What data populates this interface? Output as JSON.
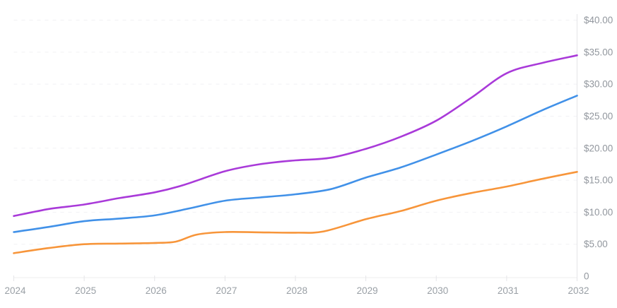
{
  "chart_data": {
    "type": "line",
    "title": "",
    "legend": "none",
    "grid": "horizontal-dashed",
    "x_axis": {
      "tick_labels": [
        "2024",
        "2025",
        "2026",
        "2027",
        "2028",
        "2029",
        "2030",
        "2031",
        "2032"
      ],
      "tick_values": [
        2024,
        2025,
        2026,
        2027,
        2028,
        2029,
        2030,
        2031,
        2032
      ],
      "range": [
        2024,
        2032
      ],
      "position": "bottom"
    },
    "y_axis": {
      "tick_labels": [
        "$40.00",
        "$35.00",
        "$30.00",
        "$25.00",
        "$20.00",
        "$15.00",
        "$10.00",
        "$5.00",
        "0"
      ],
      "tick_values": [
        40,
        35,
        30,
        25,
        20,
        15,
        10,
        5,
        0
      ],
      "range": [
        0,
        40
      ],
      "position": "right",
      "unit": "USD"
    },
    "series": [
      {
        "name": "purple-line",
        "color": "#a93ad9",
        "points": [
          [
            2024.0,
            9.4
          ],
          [
            2024.5,
            10.5
          ],
          [
            2025.0,
            11.2
          ],
          [
            2025.5,
            12.2
          ],
          [
            2026.0,
            13.1
          ],
          [
            2026.4,
            14.2
          ],
          [
            2027.0,
            16.4
          ],
          [
            2027.5,
            17.5
          ],
          [
            2028.0,
            18.1
          ],
          [
            2028.5,
            18.5
          ],
          [
            2029.0,
            19.9
          ],
          [
            2029.5,
            21.8
          ],
          [
            2030.0,
            24.3
          ],
          [
            2030.5,
            27.9
          ],
          [
            2031.0,
            31.7
          ],
          [
            2031.5,
            33.3
          ],
          [
            2032.0,
            34.5
          ]
        ]
      },
      {
        "name": "blue-line",
        "color": "#4191e8",
        "points": [
          [
            2024.0,
            6.9
          ],
          [
            2024.5,
            7.7
          ],
          [
            2025.0,
            8.6
          ],
          [
            2025.5,
            9.0
          ],
          [
            2026.0,
            9.5
          ],
          [
            2026.5,
            10.6
          ],
          [
            2027.0,
            11.8
          ],
          [
            2027.5,
            12.3
          ],
          [
            2028.0,
            12.8
          ],
          [
            2028.5,
            13.6
          ],
          [
            2029.0,
            15.4
          ],
          [
            2029.5,
            17.0
          ],
          [
            2030.0,
            19.0
          ],
          [
            2030.5,
            21.1
          ],
          [
            2031.0,
            23.4
          ],
          [
            2031.5,
            25.9
          ],
          [
            2032.0,
            28.2
          ]
        ]
      },
      {
        "name": "orange-line",
        "color": "#f7953a",
        "points": [
          [
            2024.0,
            3.6
          ],
          [
            2024.5,
            4.4
          ],
          [
            2025.0,
            5.0
          ],
          [
            2025.5,
            5.1
          ],
          [
            2026.0,
            5.2
          ],
          [
            2026.3,
            5.4
          ],
          [
            2026.6,
            6.5
          ],
          [
            2027.0,
            6.9
          ],
          [
            2027.5,
            6.85
          ],
          [
            2028.0,
            6.8
          ],
          [
            2028.4,
            7.0
          ],
          [
            2029.0,
            8.9
          ],
          [
            2029.5,
            10.2
          ],
          [
            2030.0,
            11.8
          ],
          [
            2030.5,
            13.0
          ],
          [
            2031.0,
            14.0
          ],
          [
            2031.5,
            15.2
          ],
          [
            2032.0,
            16.3
          ]
        ]
      }
    ]
  },
  "colors": {
    "background": "#ffffff",
    "grid_line": "#f1f1f4",
    "x_axis_line": "#ededed",
    "y_axis_line": "#e5e5e8",
    "tick_mark": "#e5e5e8",
    "y_label_text": "#92979e",
    "x_label_text": "#9aa0a6",
    "series_purple": "#a93ad9",
    "series_blue": "#4191e8",
    "series_orange": "#f7953a"
  }
}
